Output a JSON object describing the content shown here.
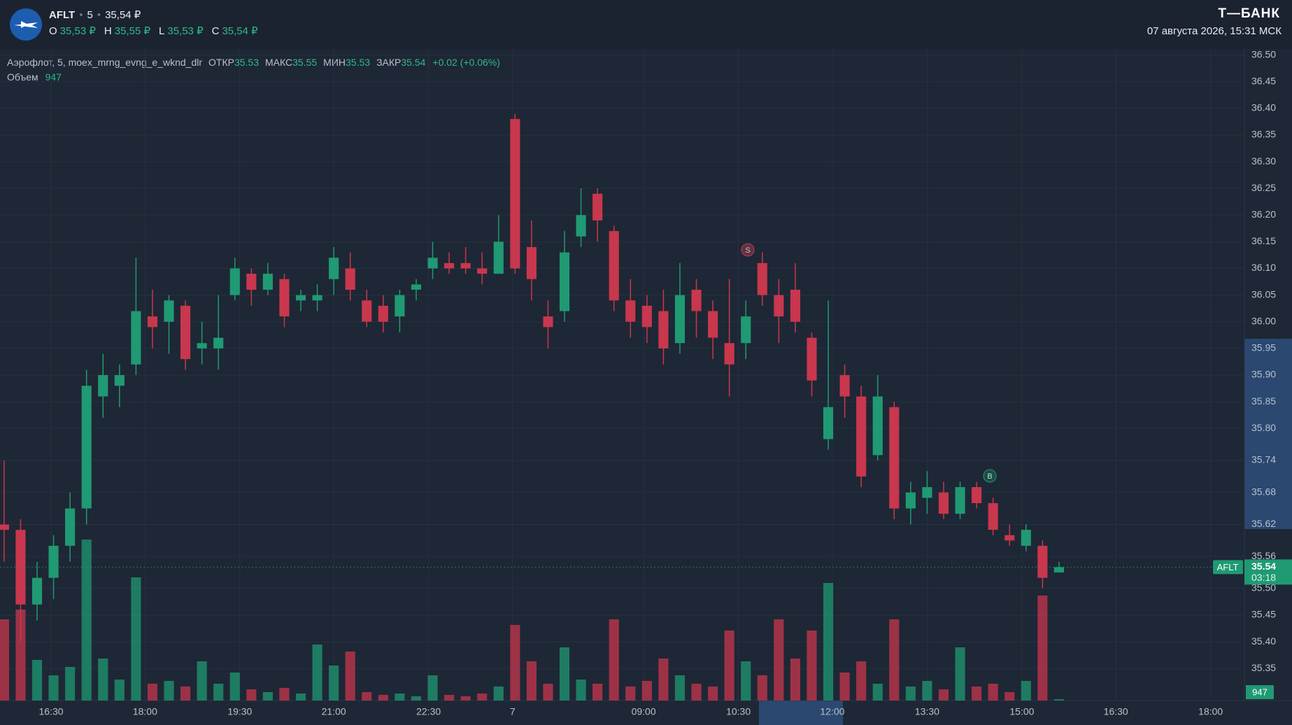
{
  "header": {
    "symbol": "AFLT",
    "interval": "5",
    "price": "35,54 ₽",
    "ohlc": [
      [
        "O",
        "35,53 ₽"
      ],
      [
        "H",
        "35,55 ₽"
      ],
      [
        "L",
        "35,53 ₽"
      ],
      [
        "C",
        "35,54 ₽"
      ]
    ],
    "brand": "Т—БАНК",
    "datetime": "07 августа 2026, 15:31 МСК"
  },
  "legend": {
    "title": "Аэрофлот, 5, moex_mrng_evng_e_wknd_dlr",
    "items": [
      [
        "ОТКР",
        "35.53"
      ],
      [
        "МАКС",
        "35.55"
      ],
      [
        "МИН",
        "35.53"
      ],
      [
        "ЗАКР",
        "35.54"
      ]
    ],
    "change": "+0.02 (+0.06%)",
    "volume_label": "Объем",
    "volume_value": "947"
  },
  "price_tag": {
    "symbol": "AFLT",
    "price": "35.54",
    "timer": "03:18",
    "volume": "947"
  },
  "signals": [
    "S",
    "B"
  ],
  "chart_data": {
    "type": "candlestick",
    "up_color": "#1f9a73",
    "down_color": "#c8374d",
    "grid": true,
    "open": [
      35.62,
      35.61,
      35.47,
      35.52,
      35.58,
      35.65,
      35.86,
      35.88,
      35.92,
      36.01,
      36.0,
      36.03,
      35.95,
      35.95,
      36.05,
      36.09,
      36.06,
      36.08,
      36.04,
      36.04,
      36.08,
      36.1,
      36.04,
      36.03,
      36.01,
      36.06,
      36.1,
      36.11,
      36.11,
      36.1,
      36.09,
      36.38,
      36.14,
      36.01,
      36.02,
      36.16,
      36.24,
      36.17,
      36.04,
      36.03,
      36.02,
      35.96,
      36.06,
      36.02,
      35.96,
      35.96,
      36.11,
      36.05,
      36.06,
      35.97,
      35.78,
      35.9,
      35.86,
      35.75,
      35.84,
      35.65,
      35.67,
      35.68,
      35.64,
      35.69,
      35.66,
      35.6,
      35.58,
      35.58,
      35.53
    ],
    "high": [
      35.74,
      35.63,
      35.55,
      35.6,
      35.68,
      35.91,
      35.94,
      35.92,
      36.12,
      36.06,
      36.05,
      36.04,
      36.0,
      36.05,
      36.12,
      36.1,
      36.11,
      36.09,
      36.06,
      36.07,
      36.14,
      36.13,
      36.06,
      36.05,
      36.06,
      36.08,
      36.15,
      36.13,
      36.14,
      36.13,
      36.2,
      36.39,
      36.19,
      36.04,
      36.17,
      36.25,
      36.25,
      36.18,
      36.08,
      36.05,
      36.06,
      36.11,
      36.08,
      36.04,
      36.08,
      36.04,
      36.13,
      36.08,
      36.11,
      35.98,
      36.04,
      35.92,
      35.88,
      35.9,
      35.85,
      35.7,
      35.72,
      35.7,
      35.7,
      35.7,
      35.67,
      35.62,
      35.62,
      35.59,
      35.55
    ],
    "low": [
      35.55,
      35.4,
      35.44,
      35.48,
      35.55,
      35.62,
      35.82,
      35.84,
      35.9,
      35.95,
      35.94,
      35.91,
      35.92,
      35.91,
      36.04,
      36.03,
      36.05,
      35.99,
      36.02,
      36.02,
      36.05,
      36.04,
      35.99,
      35.98,
      35.98,
      36.04,
      36.08,
      36.09,
      36.09,
      36.07,
      36.09,
      36.09,
      36.04,
      35.95,
      36.0,
      36.14,
      36.15,
      36.02,
      35.97,
      35.96,
      35.92,
      35.94,
      35.97,
      35.93,
      35.86,
      35.93,
      36.03,
      35.96,
      35.98,
      35.86,
      35.76,
      35.82,
      35.69,
      35.74,
      35.63,
      35.62,
      35.64,
      35.63,
      35.63,
      35.65,
      35.6,
      35.58,
      35.57,
      35.5,
      35.53
    ],
    "close": [
      35.61,
      35.47,
      35.52,
      35.58,
      35.65,
      35.88,
      35.9,
      35.9,
      36.02,
      35.99,
      36.04,
      35.93,
      35.96,
      35.97,
      36.1,
      36.06,
      36.09,
      36.01,
      36.05,
      36.05,
      36.12,
      36.06,
      36.0,
      36.0,
      36.05,
      36.07,
      36.12,
      36.1,
      36.1,
      36.09,
      36.15,
      36.1,
      36.08,
      35.99,
      36.13,
      36.2,
      36.19,
      36.04,
      36.0,
      35.99,
      35.95,
      36.05,
      36.02,
      35.97,
      35.92,
      36.01,
      36.05,
      36.01,
      36.0,
      35.89,
      35.84,
      35.86,
      35.71,
      35.86,
      35.65,
      35.68,
      35.69,
      35.64,
      35.69,
      35.66,
      35.61,
      35.59,
      35.61,
      35.52,
      35.54
    ],
    "volume": [
      58000,
      65000,
      29000,
      18000,
      24000,
      115000,
      30000,
      15000,
      88000,
      12000,
      14000,
      10000,
      28000,
      12000,
      20000,
      8000,
      6000,
      9000,
      5000,
      40000,
      25000,
      35000,
      6000,
      4000,
      5000,
      3000,
      18000,
      4000,
      3000,
      5000,
      10000,
      54000,
      28000,
      12000,
      38000,
      15000,
      12000,
      58000,
      10000,
      14000,
      30000,
      18000,
      12000,
      10000,
      50000,
      28000,
      18000,
      58000,
      30000,
      50000,
      84000,
      20000,
      28000,
      12000,
      58000,
      10000,
      14000,
      8000,
      38000,
      10000,
      12000,
      6000,
      14000,
      75000,
      947
    ],
    "ylim": [
      35.29,
      36.51
    ],
    "yticks": [
      35.35,
      {
        "value": 35.4,
        "label": "35.40"
      },
      35.45,
      {
        "value": 35.5,
        "label": "35.50"
      },
      35.56,
      35.62,
      35.68,
      35.74,
      {
        "value": 35.8,
        "label": "35.80"
      },
      35.85,
      {
        "value": 35.9,
        "label": "35.90"
      },
      35.95,
      {
        "value": 36.0,
        "label": "36.00"
      },
      36.05,
      {
        "value": 36.1,
        "label": "36.10"
      },
      36.15,
      {
        "value": 36.2,
        "label": "36.20"
      },
      36.25,
      {
        "value": 36.3,
        "label": "36.30"
      },
      36.35,
      {
        "value": 36.4,
        "label": "36.40"
      },
      36.45,
      {
        "value": 36.5,
        "label": "36.50"
      }
    ],
    "xlim": [
      -0.25,
      75.25
    ],
    "xticks": [
      {
        "value": 2.85,
        "label": "16:30"
      },
      {
        "value": 8.55,
        "label": "18:00"
      },
      {
        "value": 14.3,
        "label": "19:30"
      },
      {
        "value": 20.0,
        "label": "21:00"
      },
      {
        "value": 25.75,
        "label": "22:30"
      },
      {
        "value": 30.85,
        "label": "7"
      },
      {
        "value": 38.8,
        "label": "09:00"
      },
      {
        "value": 44.55,
        "label": "10:30"
      },
      {
        "value": 50.25,
        "label": "12:00"
      },
      {
        "value": 56.0,
        "label": "13:30"
      },
      {
        "value": 61.75,
        "label": "15:00"
      },
      {
        "value": 67.45,
        "label": "16:30"
      },
      {
        "value": 73.2,
        "label": "18:00"
      }
    ],
    "vlim": [
      0,
      120000
    ]
  }
}
